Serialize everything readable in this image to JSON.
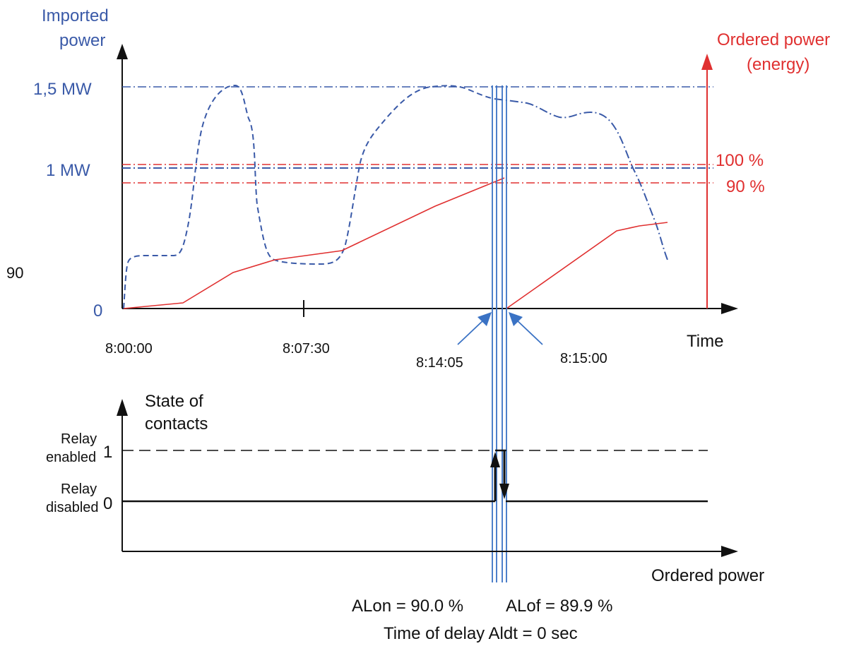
{
  "colors": {
    "imported": "#3a5aa8",
    "ordered": "#e03030",
    "black": "#111111",
    "marker": "#3a72c4"
  },
  "top_chart": {
    "y_axis_title_line1": "Imported",
    "y_axis_title_line2": "power",
    "y_ticks": {
      "max": "1,5 MW",
      "one": "1 MW",
      "zero": "0"
    },
    "stray_label": "90",
    "right_axis_title_line1": "Ordered power",
    "right_axis_title_line2": "(energy)",
    "right_ticks": {
      "p100": "100 %",
      "p90": "90 %"
    },
    "x_ticks": {
      "t0": "8:00:00",
      "t1": "8:07:30"
    },
    "x_axis_title": "Time",
    "markers": {
      "on": "8:14:05",
      "off": "8:15:00"
    }
  },
  "bottom_chart": {
    "y_axis_title_line1": "State of",
    "y_axis_title_line2": "contacts",
    "level1_label_line1": "Relay",
    "level1_label_line2": "enabled",
    "level1_value": "1",
    "level0_label_line1": "Relay",
    "level0_label_line2": "disabled",
    "level0_value": "0",
    "x_axis_title": "Ordered power"
  },
  "footer": {
    "alon": "ALon = 90.0 %",
    "alof": "ALof = 89.9 %",
    "delay": "Time of delay Aldt = 0 sec"
  }
}
